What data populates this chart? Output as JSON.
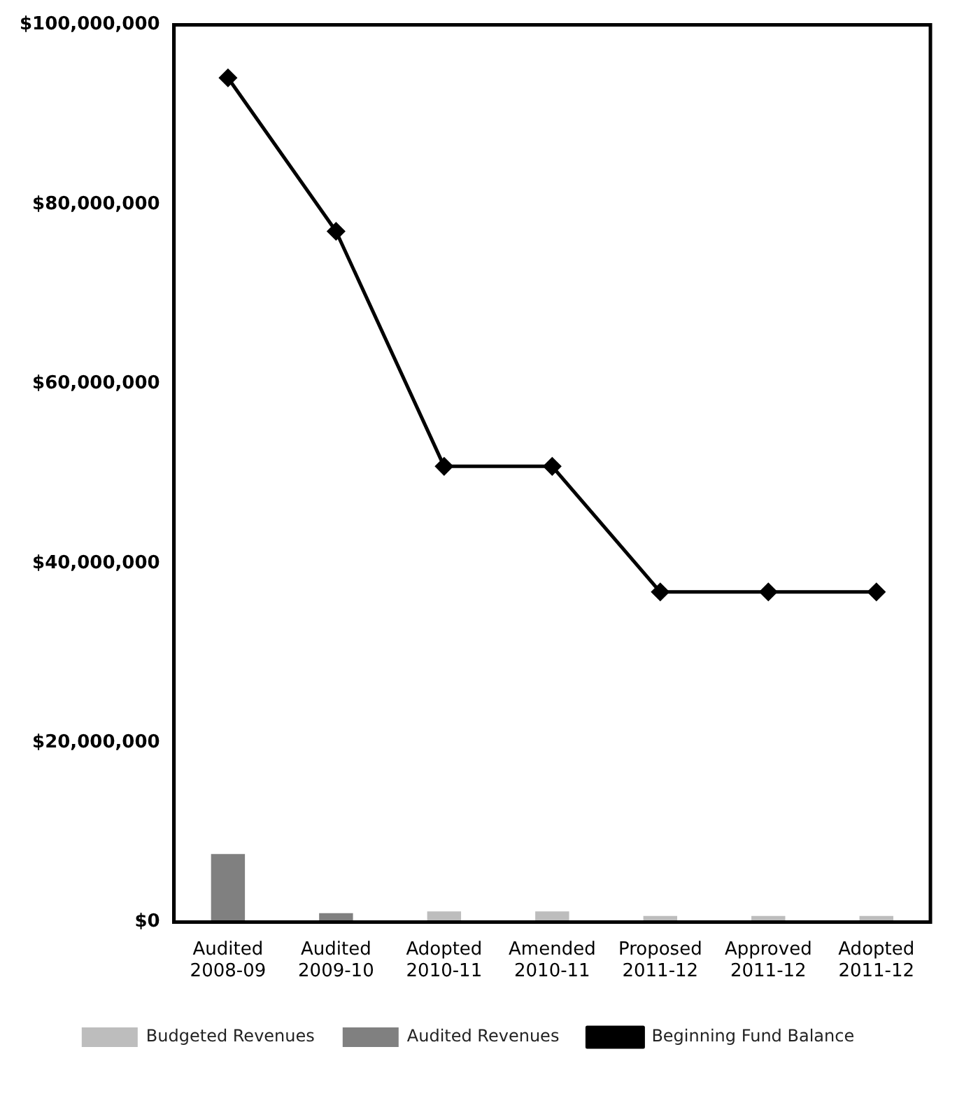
{
  "chart_data": {
    "type": "bar",
    "categories": [
      "Audited 2008-09",
      "Audited 2009-10",
      "Adopted 2010-11",
      "Amended 2010-11",
      "Proposed 2011-12",
      "Approved 2011-12",
      "Adopted 2011-12"
    ],
    "series": [
      {
        "name": "Budgeted Revenues",
        "color": "#bdbdbd",
        "values": [
          null,
          null,
          1200000,
          1200000,
          700000,
          700000,
          700000
        ]
      },
      {
        "name": "Audited Revenues",
        "color": "#808080",
        "values": [
          7600000,
          1000000,
          null,
          null,
          null,
          null,
          null
        ]
      },
      {
        "name": "Beginning Fund Balance",
        "type": "line",
        "color": "#000000",
        "values": [
          94100000,
          77000000,
          50800000,
          50800000,
          36800000,
          36800000,
          36800000
        ]
      }
    ],
    "ylim": [
      0,
      100000000
    ],
    "yticks": [
      {
        "value": 0,
        "label": "$0"
      },
      {
        "value": 20000000,
        "label": "$20,000,000"
      },
      {
        "value": 40000000,
        "label": "$40,000,000"
      },
      {
        "value": 60000000,
        "label": "$60,000,000"
      },
      {
        "value": 80000000,
        "label": "$80,000,000"
      },
      {
        "value": 100000000,
        "label": "$100,000,000"
      }
    ],
    "grid": false,
    "legend": "bottom",
    "marker": "diamond",
    "line_style": "solid"
  }
}
